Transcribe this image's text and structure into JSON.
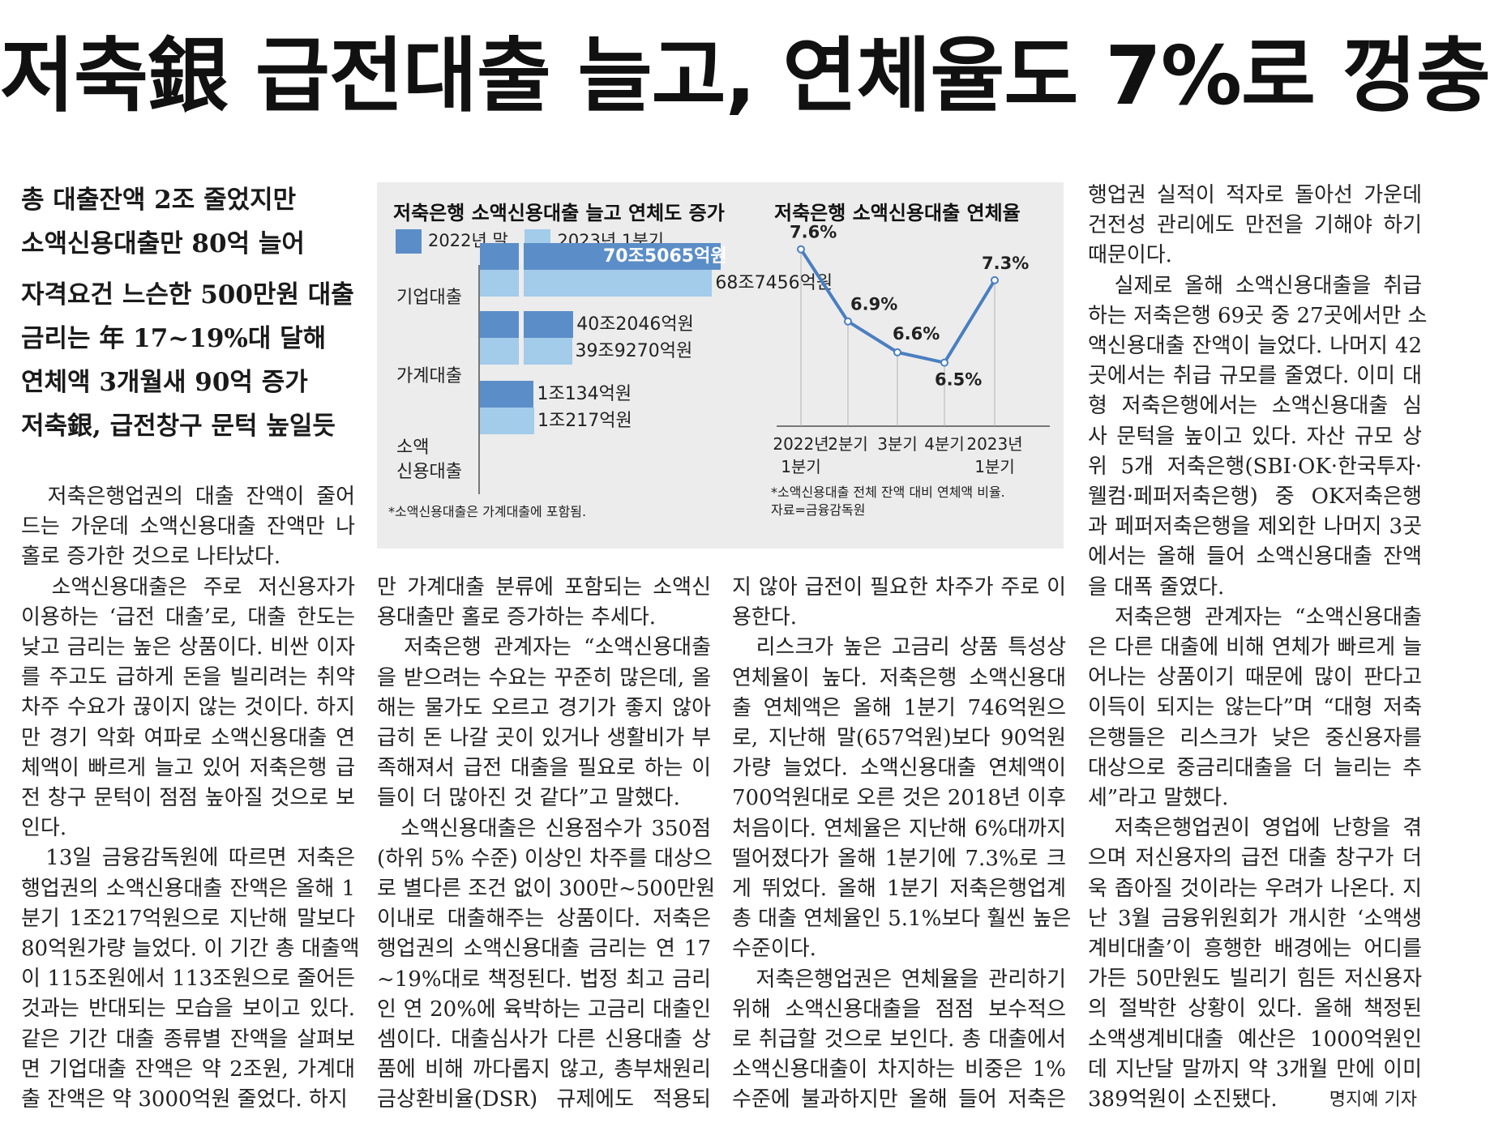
{
  "headline": "저축銀 급전대출 늘고, 연체율도 7%로 껑충",
  "subheads": [
    [
      "총 대출잔액 2조 줄었지만",
      "소액신용대출만 80억 늘어"
    ],
    [
      "자격요건 느슨한 500만원 대출",
      "금리는 年 17~19%대 달해",
      "연체액 3개월새 90억 증가",
      "저축銀, 급전창구 문턱 높일듯"
    ]
  ],
  "columns": [
    [
      "　저축은행업권의 대출 잔액이 줄어",
      "드는 가운데 소액신용대출 잔액만 나",
      "홀로 증가한 것으로 나타났다.",
      "　소액신용대출은 주로 저신용자가",
      "이용하는 ‘급전 대출’로, 대출 한도는",
      "낮고 금리는 높은 상품이다. 비싼 이자",
      "를 주고도 급하게 돈을 빌리려는 취약",
      "차주 수요가 끊이지 않는 것이다. 하지",
      "만 경기 악화 여파로 소액신용대출 연",
      "체액이 빠르게 늘고 있어 저축은행 급",
      "전 창구 문턱이 점점 높아질 것으로 보",
      "인다.",
      "　13일 금융감독원에 따르면 저축은",
      "행업권의 소액신용대출 잔액은 올해 1",
      "분기 1조217억원으로 지난해 말보다",
      "80억원가량 늘었다. 이 기간 총 대출액",
      "이 115조원에서 113조원으로 줄어든",
      "것과는 반대되는 모습을 보이고 있다.",
      "같은 기간 대출 종류별 잔액을 살펴보",
      "면 기업대출 잔액은 약 2조원, 가계대",
      "출 잔액은 약 3000억원 줄었다. 하지"
    ],
    [
      "만 가계대출 분류에 포함되는 소액신",
      "용대출만 홀로 증가하는 추세다.",
      "　저축은행 관계자는 “소액신용대출",
      "을 받으려는 수요는 꾸준히 많은데, 올",
      "해는 물가도 오르고 경기가 좋지 않아",
      "급히 돈 나갈 곳이 있거나 생활비가 부",
      "족해져서 급전 대출을 필요로 하는 이",
      "들이 더 많아진 것 같다”고 말했다.",
      "　소액신용대출은 신용점수가 350점",
      "(하위 5% 수준) 이상인 차주를 대상으",
      "로 별다른 조건 없이 300만~500만원",
      "이내로 대출해주는 상품이다. 저축은",
      "행업권의 소액신용대출 금리는 연 17",
      "~19%대로 책정된다. 법정 최고 금리",
      "인 연 20%에 육박하는 고금리 대출인",
      "셈이다. 대출심사가 다른 신용대출 상",
      "품에 비해 까다롭지 않고, 총부채원리",
      "금상환비율(DSR) 규제에도 적용되"
    ],
    [
      "지 않아 급전이 필요한 차주가 주로 이",
      "용한다.",
      "　리스크가 높은 고금리 상품 특성상",
      "연체율이 높다. 저축은행 소액신용대",
      "출 연체액은 올해 1분기 746억원으",
      "로, 지난해 말(657억원)보다 90억원",
      "가량 늘었다. 소액신용대출 연체액이",
      "700억원대로 오른 것은 2018년 이후",
      "처음이다. 연체율은 지난해 6%대까지",
      "떨어졌다가 올해 1분기에 7.3%로 크",
      "게 뛰었다. 올해 1분기 저축은행업계",
      "총 대출 연체율인 5.1%보다 훨씬 높은",
      "수준이다.",
      "　저축은행업권은 연체율을 관리하기",
      "위해 소액신용대출을 점점 보수적으",
      "로 취급할 것으로 보인다. 총 대출에서",
      "소액신용대출이 차지하는 비중은 1%",
      "수준에 불과하지만 올해 들어 저축은"
    ],
    [
      "행업권 실적이 적자로 돌아선 가운데",
      "건전성 관리에도 만전을 기해야 하기",
      "때문이다.",
      "　실제로 올해 소액신용대출을 취급",
      "하는 저축은행 69곳 중 27곳에서만 소",
      "액신용대출 잔액이 늘었다. 나머지 42",
      "곳에서는 취급 규모를 줄였다. 이미 대",
      "형 저축은행에서는 소액신용대출 심",
      "사 문턱을 높이고 있다. 자산 규모 상",
      "위 5개 저축은행(SBI·OK·한국투자·",
      "웰컴·페퍼저축은행) 중 OK저축은행",
      "과 페퍼저축은행을 제외한 나머지 3곳",
      "에서는 올해 들어 소액신용대출 잔액",
      "을 대폭 줄였다.",
      "　저축은행 관계자는 “소액신용대출",
      "은 다른 대출에 비해 연체가 빠르게 늘",
      "어나는 상품이기 때문에 많이 판다고",
      "이득이 되지는 않는다”며 “대형 저축",
      "은행들은 리스크가 낮은 중신용자를",
      "대상으로 중금리대출을 더 늘리는 추",
      "세”라고 말했다.",
      "　저축은행업권이 영업에 난항을 겪",
      "으며 저신용자의 급전 대출 창구가 더",
      "욱 좁아질 것이라는 우려가 나온다. 지",
      "난 3월 금융위원회가 개시한 ‘소액생",
      "계비대출’이 흥행한 배경에는 어디를",
      "가든 50만원도 빌리기 힘든 저신용자",
      "의 절박한 상황이 있다. 올해 책정된",
      "소액생계비대출 예산은 1000억원인",
      "데 지난달 말까지 약 3개월 만에 이미",
      "389억원이 소진됐다."
    ]
  ],
  "byline": "명지예 기자",
  "chart_data": [
    {
      "type": "bar",
      "title": "저축은행 소액신용대출 늘고 연체도 증가",
      "orientation": "horizontal",
      "categories": [
        "기업대출",
        "가계대출",
        "소액 신용대출"
      ],
      "category_lines": [
        [
          "기업대출"
        ],
        [
          "가계대출"
        ],
        [
          "소액",
          "신용대출"
        ]
      ],
      "series": [
        {
          "name": "2022년 말",
          "color": "#5b8ec8",
          "values_eok": [
            705065,
            402046,
            10134
          ],
          "labels": [
            "70조5065억원",
            "40조2046억원",
            "1조134억원"
          ]
        },
        {
          "name": "2023년 1분기",
          "color": "#a3cbea",
          "values_eok": [
            687456,
            399270,
            10217
          ],
          "labels": [
            "68조7456억원",
            "39조9270억원",
            "1조217억원"
          ]
        }
      ],
      "scale_break": true,
      "note": "*소액신용대출은 가계대출에 포함됨."
    },
    {
      "type": "line",
      "title": "저축은행 소액신용대출 연체율",
      "x": [
        [
          "2022년",
          "1분기"
        ],
        [
          "2분기"
        ],
        [
          "3분기"
        ],
        [
          "4분기"
        ],
        [
          "2023년",
          "1분기"
        ]
      ],
      "y": [
        7.6,
        6.9,
        6.6,
        6.5,
        7.3
      ],
      "labels": [
        "7.6%",
        "6.9%",
        "6.6%",
        "6.5%",
        "7.3%"
      ],
      "unit": "%",
      "line_color": "#4a7fc0",
      "note": [
        "*소액신용대출 전체 잔액 대비 연체액 비율.",
        "자료=금융감독원"
      ]
    }
  ]
}
